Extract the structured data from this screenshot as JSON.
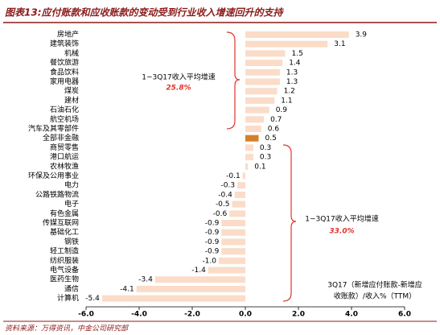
{
  "chart_data": {
    "type": "bar",
    "orientation": "horizontal",
    "title": "图表13:应付账款和应收账款的变动受到行业收入增速回升的支持",
    "categories": [
      "房地产",
      "建筑装饰",
      "机械",
      "餐饮旅游",
      "食品饮料",
      "家用电器",
      "煤炭",
      "建材",
      "石油石化",
      "航空机场",
      "汽车及其零部件",
      "全部非金融",
      "商贸零售",
      "港口航运",
      "农林牧渔",
      "环保及公用事业",
      "电力",
      "公路铁路物流",
      "电子",
      "有色金属",
      "传媒互联网",
      "基础化工",
      "钢铁",
      "轻工制造",
      "纺织服装",
      "电气设备",
      "医药生物",
      "通信",
      "计算机"
    ],
    "values": [
      3.9,
      3.1,
      1.5,
      1.4,
      1.3,
      1.3,
      1.2,
      1.1,
      0.9,
      0.7,
      0.6,
      0.5,
      0.3,
      0.3,
      0.1,
      -0.1,
      -0.3,
      -0.4,
      -0.5,
      -0.6,
      -0.9,
      -0.9,
      -0.9,
      -0.9,
      -1.0,
      -1.4,
      -3.4,
      -4.1,
      -5.4
    ],
    "value_labels": [
      "3.9",
      "3.1",
      "1.5",
      "1.4",
      "1.3",
      "1.3",
      "1.2",
      "1.1",
      "0.9",
      "0.7",
      "0.6",
      "0.5",
      "0.3",
      "0.3",
      "0.1",
      "-0.1",
      "-0.3",
      "-0.4",
      "-0.5",
      "-0.6",
      "-0.9",
      "-0.9",
      "-0.9",
      "-0.9",
      "-1.0",
      "-1.4",
      "-3.4",
      "-4.1",
      "-5.4"
    ],
    "colors": [
      "#fbdcc8",
      "#fbdcc8",
      "#fbdcc8",
      "#fbdcc8",
      "#fbdcc8",
      "#fbdcc8",
      "#fbdcc8",
      "#fbdcc8",
      "#fbdcc8",
      "#fbdcc8",
      "#fbdcc8",
      "#d4802a",
      "#fbdcc8",
      "#fbdcc8",
      "#fbdcc8",
      "#fbdcc8",
      "#fbdcc8",
      "#fbdcc8",
      "#fbdcc8",
      "#fbdcc8",
      "#fbdcc8",
      "#fbdcc8",
      "#fbdcc8",
      "#fbdcc8",
      "#fbdcc8",
      "#fbdcc8",
      "#fbdcc8",
      "#fbdcc8",
      "#fbdcc8"
    ],
    "xlim": [
      -6,
      6
    ],
    "xticks": [
      {
        "value": -6,
        "label": "-6.0"
      },
      {
        "value": -4,
        "label": "-4.0"
      },
      {
        "value": -2,
        "label": "-2.0"
      },
      {
        "value": 0,
        "label": "0.0"
      },
      {
        "value": 2,
        "label": "2.0"
      },
      {
        "value": 4,
        "label": "4.0"
      },
      {
        "value": 6,
        "label": "6.0"
      }
    ],
    "annotations": [
      {
        "text": "1~3Q17收入平均增速",
        "value_text": "25.8%"
      },
      {
        "text": "1~3Q17收入平均增速",
        "value_text": "33.0%"
      }
    ],
    "axis_note": [
      "3Q17（新增应付账款-新增应",
      "收账款）/收入%（TTM）"
    ],
    "source": "资料来源：万得资讯，中金公司研究部"
  }
}
